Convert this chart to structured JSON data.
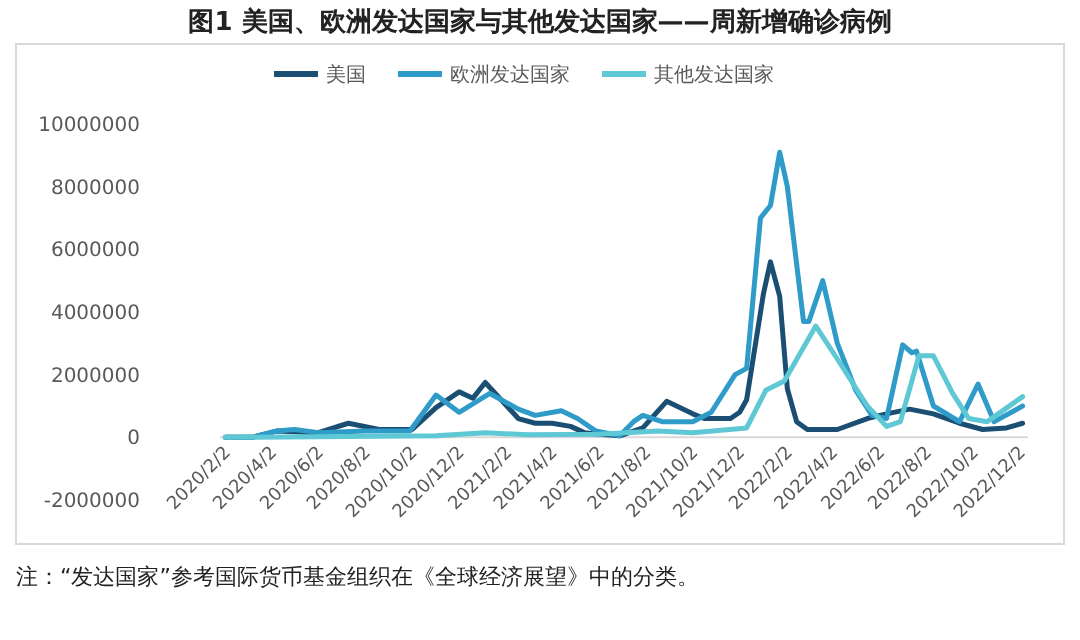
{
  "chart_data": {
    "type": "line",
    "title": "图1 美国、欧洲发达国家与其他发达国家——周新增确诊病例",
    "annotations": [
      "注：“发达国家”参考国际货币基金组织在《全球经济展望》中的分类。"
    ],
    "legend": "top",
    "grid": false,
    "line_style": "solid",
    "marker": "none",
    "xlim": [
      "2020-01-26",
      "2022-12-12"
    ],
    "xticks": [
      {
        "value": "2020-02-02",
        "label": "2020/2/2"
      },
      {
        "value": "2020-04-02",
        "label": "2020/4/2"
      },
      {
        "value": "2020-06-02",
        "label": "2020/6/2"
      },
      {
        "value": "2020-08-02",
        "label": "2020/8/2"
      },
      {
        "value": "2020-10-02",
        "label": "2020/10/2"
      },
      {
        "value": "2020-12-02",
        "label": "2020/12/2"
      },
      {
        "value": "2021-02-02",
        "label": "2021/2/2"
      },
      {
        "value": "2021-04-02",
        "label": "2021/4/2"
      },
      {
        "value": "2021-06-02",
        "label": "2021/6/2"
      },
      {
        "value": "2021-08-02",
        "label": "2021/8/2"
      },
      {
        "value": "2021-10-02",
        "label": "2021/10/2"
      },
      {
        "value": "2021-12-02",
        "label": "2021/12/2"
      },
      {
        "value": "2022-02-02",
        "label": "2022/2/2"
      },
      {
        "value": "2022-04-02",
        "label": "2022/4/2"
      },
      {
        "value": "2022-06-02",
        "label": "2022/6/2"
      },
      {
        "value": "2022-08-02",
        "label": "2022/8/2"
      },
      {
        "value": "2022-10-02",
        "label": "2022/10/2"
      },
      {
        "value": "2022-12-02",
        "label": "2022/12/2"
      }
    ],
    "ylim": [
      -2000000,
      10000000
    ],
    "yticks": [
      -2000000,
      0,
      2000000,
      4000000,
      6000000,
      8000000,
      10000000
    ],
    "series": [
      {
        "name": "美国",
        "color": "#1a4e72",
        "x": [
          "2020-02-02",
          "2020-03-08",
          "2020-04-08",
          "2020-06-02",
          "2020-07-11",
          "2020-08-20",
          "2020-10-02",
          "2020-11-02",
          "2020-12-02",
          "2020-12-20",
          "2021-01-05",
          "2021-02-17",
          "2021-03-11",
          "2021-04-02",
          "2021-04-26",
          "2021-05-14",
          "2021-06-02",
          "2021-06-29",
          "2021-07-29",
          "2021-08-29",
          "2021-10-02",
          "2021-10-17",
          "2021-11-20",
          "2021-12-02",
          "2021-12-11",
          "2022-01-02",
          "2022-01-11",
          "2022-01-23",
          "2022-02-02",
          "2022-02-14",
          "2022-02-28",
          "2022-04-08",
          "2022-05-17",
          "2022-06-11",
          "2022-07-11",
          "2022-08-11",
          "2022-09-14",
          "2022-10-14",
          "2022-11-14",
          "2022-12-05"
        ],
        "values": [
          0,
          0,
          200000,
          150000,
          450000,
          250000,
          250000,
          950000,
          1450000,
          1250000,
          1750000,
          600000,
          450000,
          450000,
          350000,
          150000,
          100000,
          50000,
          300000,
          1150000,
          750000,
          600000,
          600000,
          800000,
          1200000,
          4600000,
          5600000,
          4500000,
          1550000,
          500000,
          250000,
          250000,
          600000,
          750000,
          900000,
          750000,
          450000,
          250000,
          300000,
          450000
        ]
      },
      {
        "name": "欧洲发达国家",
        "color": "#2e9bc8",
        "x": [
          "2020-02-02",
          "2020-03-08",
          "2020-04-08",
          "2020-05-02",
          "2020-06-02",
          "2020-08-02",
          "2020-09-29",
          "2020-11-02",
          "2020-12-02",
          "2021-01-11",
          "2021-02-17",
          "2021-03-11",
          "2021-04-14",
          "2021-05-05",
          "2021-05-29",
          "2021-06-29",
          "2021-07-17",
          "2021-07-29",
          "2021-08-23",
          "2021-10-02",
          "2021-10-26",
          "2021-11-26",
          "2021-12-11",
          "2021-12-29",
          "2022-01-11",
          "2022-01-23",
          "2022-02-02",
          "2022-02-23",
          "2022-03-02",
          "2022-03-20",
          "2022-04-08",
          "2022-05-02",
          "2022-05-23",
          "2022-06-11",
          "2022-07-02",
          "2022-07-14",
          "2022-07-20",
          "2022-08-11",
          "2022-09-14",
          "2022-10-08",
          "2022-10-29",
          "2022-12-05"
        ],
        "values": [
          0,
          0,
          200000,
          250000,
          150000,
          200000,
          200000,
          1350000,
          800000,
          1400000,
          900000,
          700000,
          850000,
          600000,
          200000,
          50000,
          500000,
          700000,
          500000,
          500000,
          800000,
          2000000,
          2200000,
          7000000,
          7400000,
          9100000,
          8000000,
          3700000,
          3700000,
          5000000,
          3000000,
          1500000,
          700000,
          600000,
          2950000,
          2700000,
          2750000,
          1000000,
          500000,
          1700000,
          500000,
          1000000
        ]
      },
      {
        "name": "其他发达国家",
        "color": "#5ec8d5",
        "x": [
          "2020-02-02",
          "2020-11-02",
          "2021-01-05",
          "2021-03-02",
          "2021-06-02",
          "2021-08-17",
          "2021-10-02",
          "2021-12-11",
          "2022-01-05",
          "2022-01-29",
          "2022-03-11",
          "2022-04-08",
          "2022-05-17",
          "2022-06-11",
          "2022-06-29",
          "2022-07-14",
          "2022-07-23",
          "2022-08-11",
          "2022-09-05",
          "2022-09-26",
          "2022-10-20",
          "2022-12-05"
        ],
        "values": [
          0,
          50000,
          150000,
          80000,
          100000,
          200000,
          150000,
          300000,
          1500000,
          1800000,
          3550000,
          2500000,
          1000000,
          350000,
          500000,
          1800000,
          2600000,
          2600000,
          1400000,
          600000,
          500000,
          1300000
        ]
      }
    ]
  }
}
